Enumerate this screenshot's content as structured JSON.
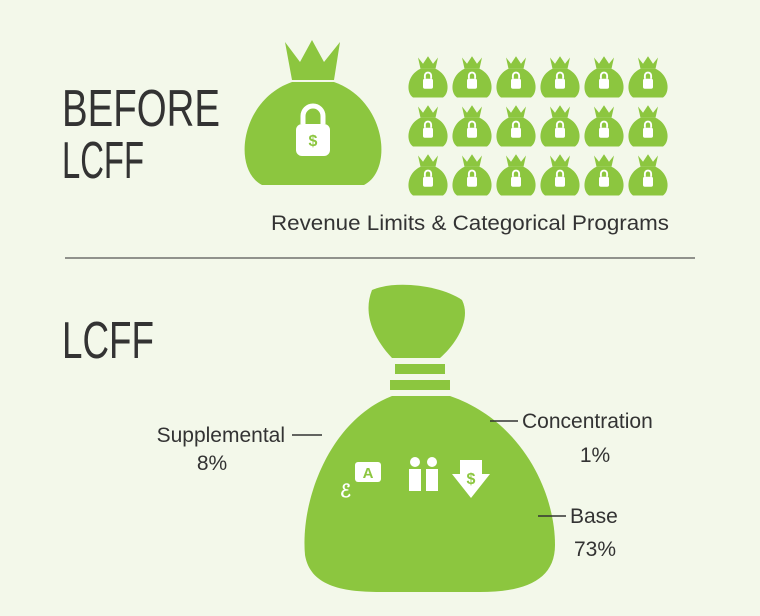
{
  "before": {
    "title_lines": [
      "BEFORE",
      "LCFF"
    ],
    "caption": "Revenue Limits & Categorical Programs"
  },
  "lcff": {
    "title": "LCFF",
    "labels": [
      {
        "name": "Supplemental",
        "value": "8%"
      },
      {
        "name": "Concentration",
        "value": "1%"
      },
      {
        "name": "Base",
        "value": "73%"
      }
    ]
  }
}
